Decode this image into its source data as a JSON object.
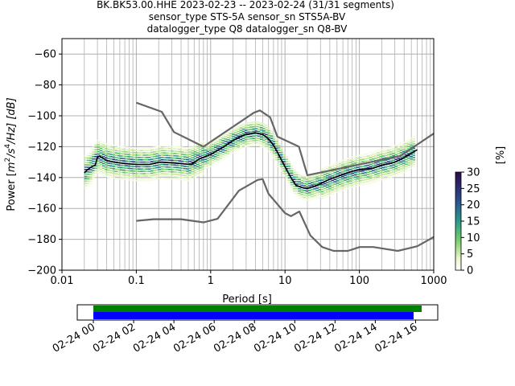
{
  "title_lines": [
    "BK.BK53.00.HHE   2023-02-23 -- 2023-02-24  (31/31 segments)",
    "sensor_type STS-5A sensor_sn STS5A-BV",
    "datalogger_type Q8 datalogger_sn Q8-BV"
  ],
  "chart_data": [
    {
      "type": "heatmap",
      "xlabel": "Period [s]",
      "ylabel": "Power [m²/s⁴/Hz] [dB]",
      "ylabel_parts": {
        "base": "Power [",
        "m": "m",
        "sup2": "2",
        "slash1": "/s",
        "sup4": "4",
        "rest": "/Hz] [dB]"
      },
      "xscale": "log",
      "xlim": [
        0.01,
        1000
      ],
      "ylim": [
        -200,
        -50
      ],
      "x_ticks": [
        0.01,
        0.1,
        1,
        10,
        100,
        1000
      ],
      "x_tick_labels": [
        "0.01",
        "0.1",
        "1",
        "10",
        "100",
        "1000"
      ],
      "y_ticks": [
        -200,
        -180,
        -160,
        -140,
        -120,
        -100,
        -80,
        -60
      ],
      "y_tick_labels": [
        "−200",
        "−180",
        "−160",
        "−140",
        "−120",
        "−100",
        "−80",
        "−60"
      ],
      "grid": true,
      "colorbar": {
        "label": "[%]",
        "range": [
          0,
          30
        ],
        "ticks": [
          0,
          5,
          10,
          15,
          20,
          25,
          30
        ],
        "tick_labels": [
          "0",
          "5",
          "10",
          "15",
          "20",
          "25",
          "30"
        ]
      },
      "nhnm": {
        "name": "NHNM",
        "x": [
          0.1,
          0.22,
          0.32,
          0.8,
          3.8,
          4.6,
          6.3,
          7.9,
          15.4,
          20,
          354.8,
          1000
        ],
        "y": [
          -91.5,
          -97.4,
          -110.5,
          -120,
          -98,
          -96.5,
          -101,
          -113.5,
          -120,
          -138.5,
          -126,
          -111.5
        ]
      },
      "nlnm": {
        "name": "NLNM",
        "x": [
          0.1,
          0.17,
          0.4,
          0.8,
          1.24,
          2.4,
          4.3,
          5,
          6,
          10,
          12,
          15.6,
          21.9,
          31.6,
          45,
          70,
          101,
          154,
          328,
          600,
          1000
        ],
        "y": [
          -168,
          -167,
          -167,
          -169,
          -166.7,
          -148.5,
          -141.5,
          -141,
          -150.5,
          -163,
          -165,
          -162,
          -177.5,
          -185,
          -187.5,
          -187.5,
          -185,
          -185,
          -187.5,
          -184.5,
          -178.5
        ]
      },
      "mean": {
        "name": "mean",
        "x": [
          0.02,
          0.022,
          0.025,
          0.028,
          0.03,
          0.032,
          0.04,
          0.05,
          0.07,
          0.1,
          0.15,
          0.2,
          0.3,
          0.4,
          0.55,
          0.7,
          1,
          1.5,
          2,
          2.5,
          3,
          4,
          5,
          6,
          7,
          8,
          10,
          12,
          14,
          17,
          20,
          25,
          30,
          40,
          60,
          80,
          100,
          150,
          200,
          300,
          400,
          600
        ],
        "y": [
          -137,
          -135,
          -133,
          -132,
          -127,
          -126,
          -129,
          -130,
          -131,
          -131.5,
          -131.5,
          -130,
          -130.5,
          -131,
          -131.5,
          -128,
          -125,
          -120,
          -116,
          -113.5,
          -112,
          -111,
          -112,
          -115,
          -119,
          -124,
          -133,
          -140,
          -145,
          -146.5,
          -147,
          -145.5,
          -144,
          -141,
          -138,
          -136,
          -135,
          -134,
          -132,
          -130,
          -127,
          -122
        ]
      },
      "density": {
        "columns": [
          {
            "x": 0.02,
            "y": -137
          },
          {
            "x": 0.025,
            "y": -133
          },
          {
            "x": 0.03,
            "y": -126
          },
          {
            "x": 0.04,
            "y": -129
          },
          {
            "x": 0.06,
            "y": -130.5
          },
          {
            "x": 0.1,
            "y": -131.5
          },
          {
            "x": 0.15,
            "y": -131.5
          },
          {
            "x": 0.22,
            "y": -130
          },
          {
            "x": 0.35,
            "y": -130.5
          },
          {
            "x": 0.5,
            "y": -131.5
          },
          {
            "x": 0.7,
            "y": -128
          },
          {
            "x": 1,
            "y": -125
          },
          {
            "x": 1.5,
            "y": -120
          },
          {
            "x": 2.2,
            "y": -115
          },
          {
            "x": 3,
            "y": -112
          },
          {
            "x": 4.2,
            "y": -111
          },
          {
            "x": 5.5,
            "y": -113
          },
          {
            "x": 7,
            "y": -119
          },
          {
            "x": 8.5,
            "y": -126
          },
          {
            "x": 10.5,
            "y": -134
          },
          {
            "x": 13,
            "y": -142
          },
          {
            "x": 16,
            "y": -146
          },
          {
            "x": 20,
            "y": -147
          },
          {
            "x": 25,
            "y": -145.5
          },
          {
            "x": 32,
            "y": -144
          },
          {
            "x": 45,
            "y": -141
          },
          {
            "x": 65,
            "y": -138
          },
          {
            "x": 90,
            "y": -136
          },
          {
            "x": 130,
            "y": -134.5
          },
          {
            "x": 190,
            "y": -132
          },
          {
            "x": 280,
            "y": -130
          },
          {
            "x": 400,
            "y": -127
          },
          {
            "x": 560,
            "y": -123
          }
        ]
      }
    },
    {
      "type": "bar",
      "title": "",
      "x_tick_labels": [
        "02-24 00",
        "02-24 02",
        "02-24 04",
        "02-24 06",
        "02-24 08",
        "02-24 10",
        "02-24 12",
        "02-24 14",
        "02-24 16"
      ],
      "x_ticks_hours": [
        0,
        2,
        4,
        6,
        8,
        10,
        12,
        14,
        16
      ],
      "xlim_hours": [
        -0.8,
        17.1
      ],
      "series": [
        {
          "start_hours": 0,
          "end_hours": 16.3,
          "color": "#008000"
        },
        {
          "start_hours": 0,
          "end_hours": 15.9,
          "color": "#0000ff"
        }
      ]
    }
  ],
  "colors": {
    "noise_models": "#666666",
    "mean": "#000000",
    "grid": "#b0b0b0"
  }
}
